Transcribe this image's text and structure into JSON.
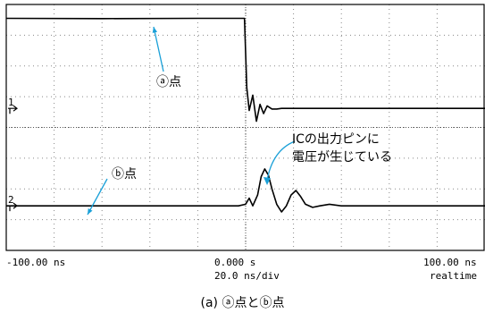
{
  "chart_data": {
    "type": "line",
    "x_unit": "ns",
    "xlim": [
      -100,
      100
    ],
    "ylim": [
      -4,
      4
    ],
    "grid": true,
    "series": [
      {
        "name": "ⓐ点",
        "x": [
          -100,
          -60,
          -20,
          -5,
          -0.5,
          0.5,
          1.5,
          3,
          4.5,
          6,
          7.5,
          9,
          11,
          13,
          15,
          20,
          30,
          60,
          100
        ],
        "y": [
          3.55,
          3.54,
          3.55,
          3.55,
          3.55,
          1.3,
          0.55,
          1.05,
          0.2,
          0.75,
          0.45,
          0.7,
          0.6,
          0.6,
          0.62,
          0.62,
          0.62,
          0.62,
          0.62
        ]
      },
      {
        "name": "ⓑ点",
        "x": [
          -100,
          -60,
          -20,
          -3,
          0,
          1.5,
          3,
          5,
          6.5,
          8,
          9.5,
          11,
          13,
          15,
          17,
          19,
          21,
          23,
          25,
          28,
          31,
          35,
          40,
          50,
          60,
          100
        ],
        "y": [
          -2.55,
          -2.55,
          -2.55,
          -2.55,
          -2.5,
          -2.3,
          -2.55,
          -2.2,
          -1.6,
          -1.35,
          -1.55,
          -2.0,
          -2.5,
          -2.75,
          -2.55,
          -2.2,
          -2.05,
          -2.25,
          -2.5,
          -2.6,
          -2.55,
          -2.5,
          -2.55,
          -2.55,
          -2.55,
          -2.55
        ]
      }
    ],
    "channel_markers": [
      "1",
      "2"
    ],
    "tick_labels": {
      "left": "-100.00 ns",
      "center": "0.000  s",
      "right": "100.00 ns",
      "center_sub": "20.0 ns/div",
      "right_sub": "realtime"
    }
  },
  "annotations": {
    "point_a": "ⓐ点",
    "point_b": "ⓑ点",
    "ic_note_line1": "ICの出力ピンに",
    "ic_note_line2": "電圧が生じている"
  },
  "caption": "(a)  ⓐ点とⓑ点",
  "colors": {
    "trace": "#000000",
    "grid": "#888888",
    "annotation_arrow": "#1aa0d8"
  }
}
